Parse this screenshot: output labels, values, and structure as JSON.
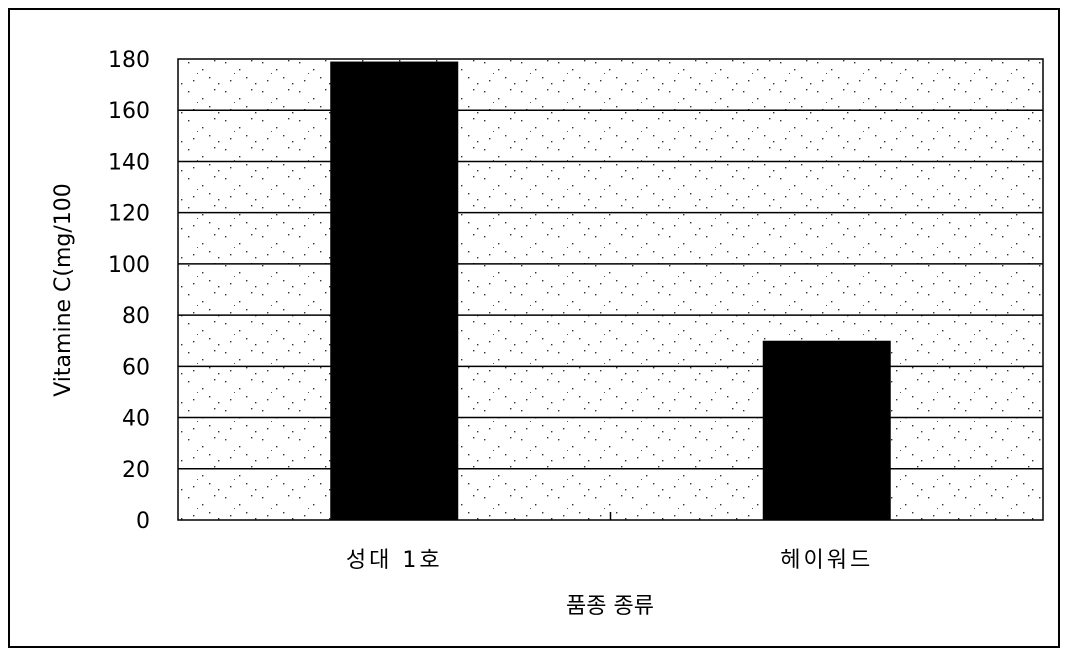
{
  "chart_data": {
    "type": "bar",
    "categories": [
      "성대 1호",
      "헤이워드"
    ],
    "values": [
      179,
      70
    ],
    "xlabel": "품종 종류",
    "ylabel": "Vitamine C(mg/100",
    "ylim": [
      0,
      180
    ],
    "yticks": [
      0,
      20,
      40,
      60,
      80,
      100,
      120,
      140,
      160,
      180
    ],
    "grid": true,
    "bar_color": "#000000",
    "plot_background": "stippled"
  }
}
